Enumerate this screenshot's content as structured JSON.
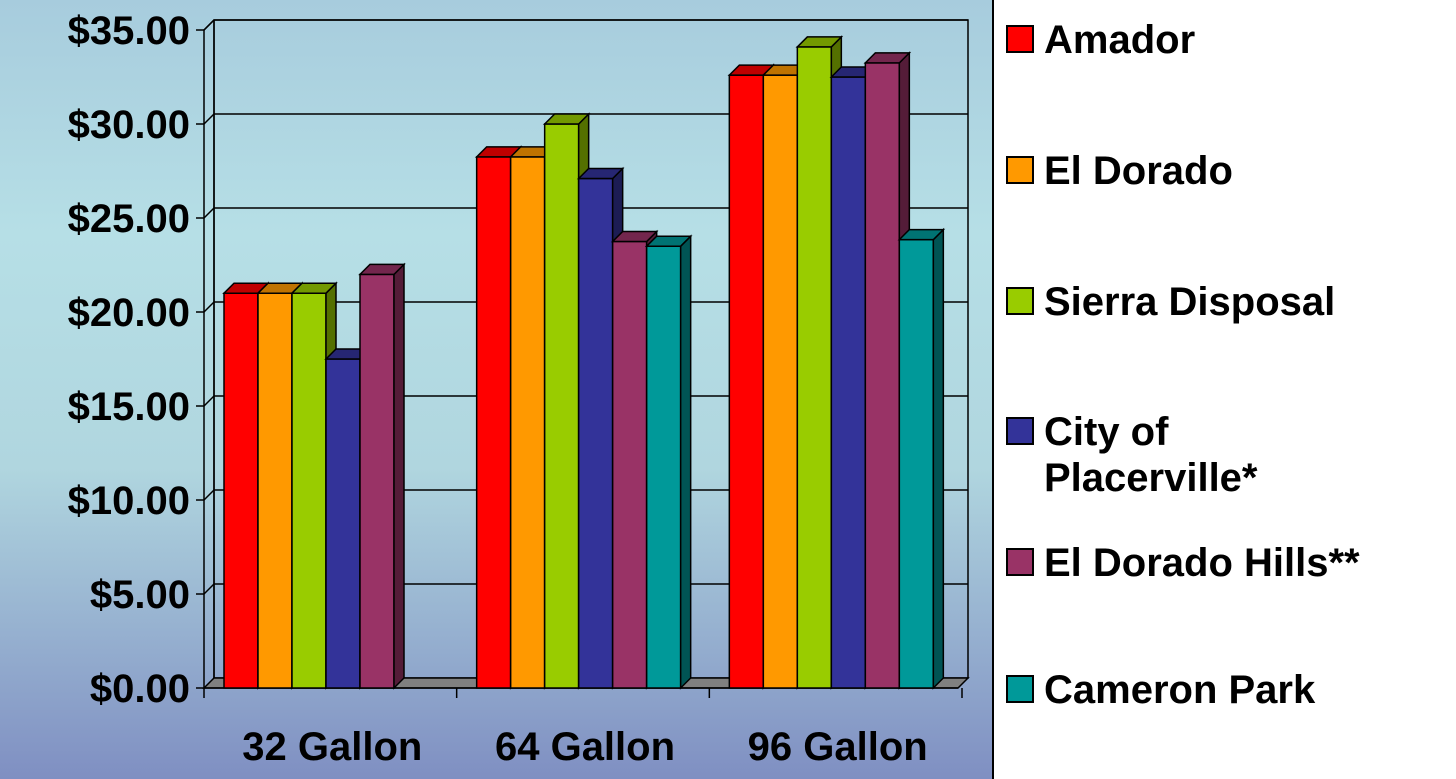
{
  "chart_data": {
    "type": "bar",
    "categories": [
      "32 Gallon",
      "64 Gallon",
      "96 Gallon"
    ],
    "series": [
      {
        "name": "Amador",
        "color": "#ff0000",
        "values": [
          21.0,
          28.25,
          32.6
        ]
      },
      {
        "name": "El Dorado",
        "color": "#ff9900",
        "values": [
          21.0,
          28.25,
          32.6
        ]
      },
      {
        "name": "Sierra Disposal",
        "color": "#99cc00",
        "values": [
          21.0,
          30.0,
          34.1
        ]
      },
      {
        "name": "City of Placerville*",
        "color": "#333399",
        "values": [
          17.5,
          27.1,
          32.5
        ]
      },
      {
        "name": "El Dorado Hills**",
        "color": "#993366",
        "values": [
          22.0,
          23.75,
          33.25
        ]
      },
      {
        "name": "Cameron Park",
        "color": "#009999",
        "values": [
          null,
          23.5,
          23.85
        ]
      }
    ],
    "y_ticks": [
      "$0.00",
      "$5.00",
      "$10.00",
      "$15.00",
      "$20.00",
      "$25.00",
      "$30.00",
      "$35.00"
    ],
    "ylim": [
      0,
      35
    ],
    "grid": true,
    "legend_position": "right"
  }
}
